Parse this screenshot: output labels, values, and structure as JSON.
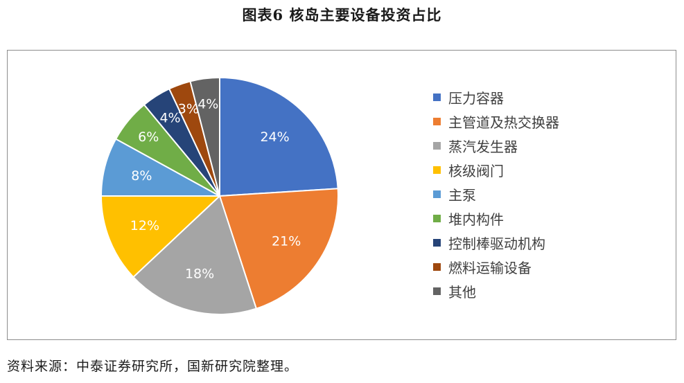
{
  "title": "图表6   核岛主要设备投资占比",
  "source_note": "资料来源：中泰证券研究所，国新研究院整理。",
  "chart_data": {
    "type": "pie",
    "categories": [
      "压力容器",
      "主管道及热交换器",
      "蒸汽发生器",
      "核级阀门",
      "主泵",
      "堆内构件",
      "控制棒驱动机构",
      "燃料运输设备",
      "其他"
    ],
    "values": [
      24,
      21,
      18,
      12,
      8,
      6,
      4,
      3,
      4
    ],
    "labels": [
      "24%",
      "21%",
      "18%",
      "12%",
      "8%",
      "6%",
      "4%",
      "3%",
      "4%"
    ],
    "colors": [
      "#4472C4",
      "#ED7D31",
      "#A5A5A5",
      "#FFC000",
      "#5B9BD5",
      "#70AD47",
      "#264478",
      "#9E480E",
      "#636363"
    ],
    "legend_position": "right",
    "start_angle": "12 o'clock",
    "direction": "clockwise"
  }
}
